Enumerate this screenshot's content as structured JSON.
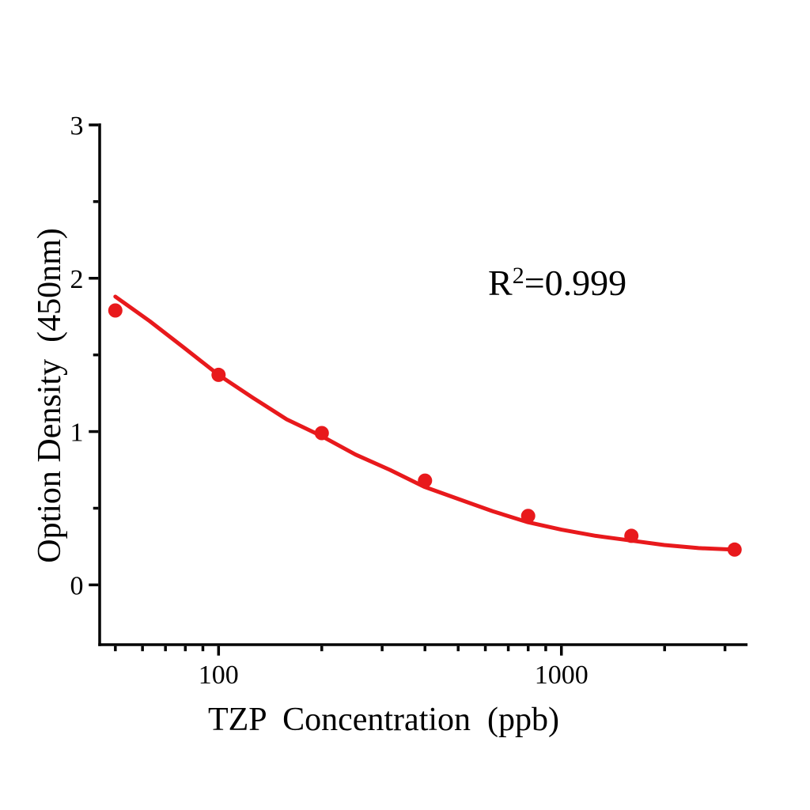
{
  "page": {
    "background": "#ffffff"
  },
  "annotation": {
    "text": "R²=0.999",
    "base": "R",
    "sup": "2",
    "rest": "=0.999"
  },
  "chart_data": {
    "type": "scatter",
    "title": "",
    "xlabel": "TZP  Concentration（ppb）",
    "ylabel": "Option Density（450nm）",
    "x_scale": "log10",
    "xlim": [
      45,
      3490
    ],
    "ylim": [
      -0.39,
      3.01
    ],
    "grid": false,
    "legend": "none",
    "axis_color": "#000000",
    "accent_color": "#e8191c",
    "x_major_ticks": [
      100,
      1000
    ],
    "x_major_tick_labels": [
      "100",
      "1000"
    ],
    "x_minor_ticks": [
      50,
      60,
      70,
      80,
      90,
      200,
      300,
      400,
      500,
      600,
      700,
      800,
      900,
      2000,
      3000
    ],
    "y_major_ticks": [
      0,
      1,
      2,
      3
    ],
    "y_major_tick_labels": [
      "0",
      "1",
      "2",
      "3"
    ],
    "y_minor_ticks": [
      0.5,
      1.5,
      2.5
    ],
    "annotation": "R²=0.999",
    "series": [
      {
        "name": "TZP standards",
        "type": "scatter",
        "marker": "circle",
        "marker_radius": 9,
        "color": "#e8191c",
        "x": [
          50,
          100,
          200,
          400,
          800,
          1600,
          3200
        ],
        "y": [
          1.79,
          1.37,
          0.99,
          0.68,
          0.45,
          0.32,
          0.23
        ]
      },
      {
        "name": "fit curve",
        "type": "line",
        "color": "#e8191c",
        "stroke_width": 5,
        "r_squared": 0.999,
        "x": [
          50,
          63,
          79,
          100,
          126,
          158,
          200,
          251,
          316,
          398,
          501,
          631,
          794,
          1000,
          1259,
          1585,
          1995,
          2512,
          3162
        ],
        "y": [
          1.88,
          1.72,
          1.55,
          1.37,
          1.22,
          1.08,
          0.97,
          0.85,
          0.75,
          0.64,
          0.56,
          0.48,
          0.41,
          0.36,
          0.32,
          0.29,
          0.26,
          0.24,
          0.23
        ]
      }
    ]
  }
}
